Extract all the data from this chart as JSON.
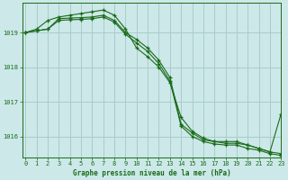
{
  "title": "Graphe pression niveau de la mer (hPa)",
  "bg_color": "#cce8e8",
  "grid_color": "#aacccc",
  "line_color": "#1a6b1a",
  "xlim": [
    -0.3,
    23
  ],
  "ylim": [
    1015.4,
    1019.85
  ],
  "yticks": [
    1016,
    1017,
    1018,
    1019
  ],
  "xticks": [
    0,
    1,
    2,
    3,
    4,
    5,
    6,
    7,
    8,
    9,
    10,
    11,
    12,
    13,
    14,
    15,
    16,
    17,
    18,
    19,
    20,
    21,
    22,
    23
  ],
  "series1": {
    "x": [
      0,
      1,
      2,
      3,
      4,
      5,
      6,
      7,
      8,
      9,
      10,
      11,
      12,
      13,
      14,
      15,
      16,
      17,
      18,
      19,
      20,
      21,
      22,
      23
    ],
    "y": [
      1019.0,
      1019.1,
      1019.35,
      1019.45,
      1019.5,
      1019.55,
      1019.6,
      1019.65,
      1019.5,
      1019.1,
      1018.55,
      1018.3,
      1018.0,
      1017.55,
      1016.55,
      1016.15,
      1015.95,
      1015.85,
      1015.85,
      1015.85,
      1015.75,
      1015.65,
      1015.55,
      1015.5
    ]
  },
  "series2": {
    "x": [
      0,
      1,
      2,
      3,
      4,
      5,
      6,
      7,
      8,
      9,
      10,
      11,
      12,
      13,
      14,
      15,
      16,
      17,
      18,
      19,
      20,
      21,
      22,
      23
    ],
    "y": [
      1019.0,
      1019.05,
      1019.1,
      1019.4,
      1019.42,
      1019.43,
      1019.45,
      1019.5,
      1019.35,
      1019.0,
      1018.8,
      1018.55,
      1018.2,
      1017.7,
      1016.35,
      1016.1,
      1015.9,
      1015.85,
      1015.8,
      1015.8,
      1015.75,
      1015.65,
      1015.55,
      1016.65
    ]
  },
  "series3": {
    "x": [
      0,
      1,
      2,
      3,
      4,
      5,
      6,
      7,
      8,
      9,
      10,
      11,
      12,
      13,
      14,
      15,
      16,
      17,
      18,
      19,
      20,
      21,
      22,
      23
    ],
    "y": [
      1019.0,
      1019.05,
      1019.1,
      1019.35,
      1019.37,
      1019.38,
      1019.4,
      1019.45,
      1019.3,
      1018.95,
      1018.7,
      1018.45,
      1018.1,
      1017.6,
      1016.3,
      1016.0,
      1015.85,
      1015.78,
      1015.75,
      1015.75,
      1015.65,
      1015.6,
      1015.5,
      1015.45
    ]
  }
}
